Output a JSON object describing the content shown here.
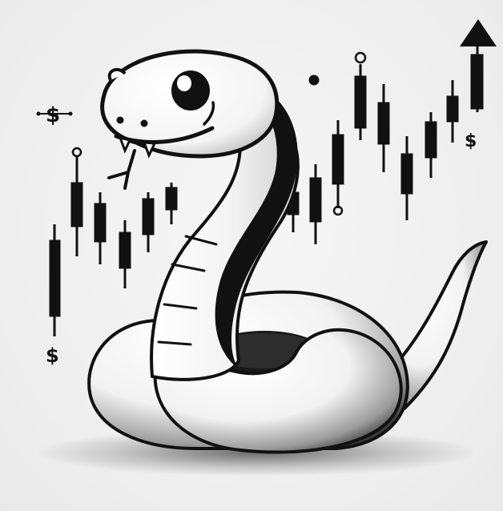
{
  "scene": {
    "subject": "cartoon-snake",
    "background_color": "#eeeeee",
    "ink_color": "#111111",
    "shade_color": "#2a2a2a"
  },
  "dollar_symbols": [
    "$",
    "$",
    "$"
  ],
  "icons": [
    "up-arrow-icon",
    "dollar-sign-icon",
    "candlestick-chart-icon"
  ]
}
